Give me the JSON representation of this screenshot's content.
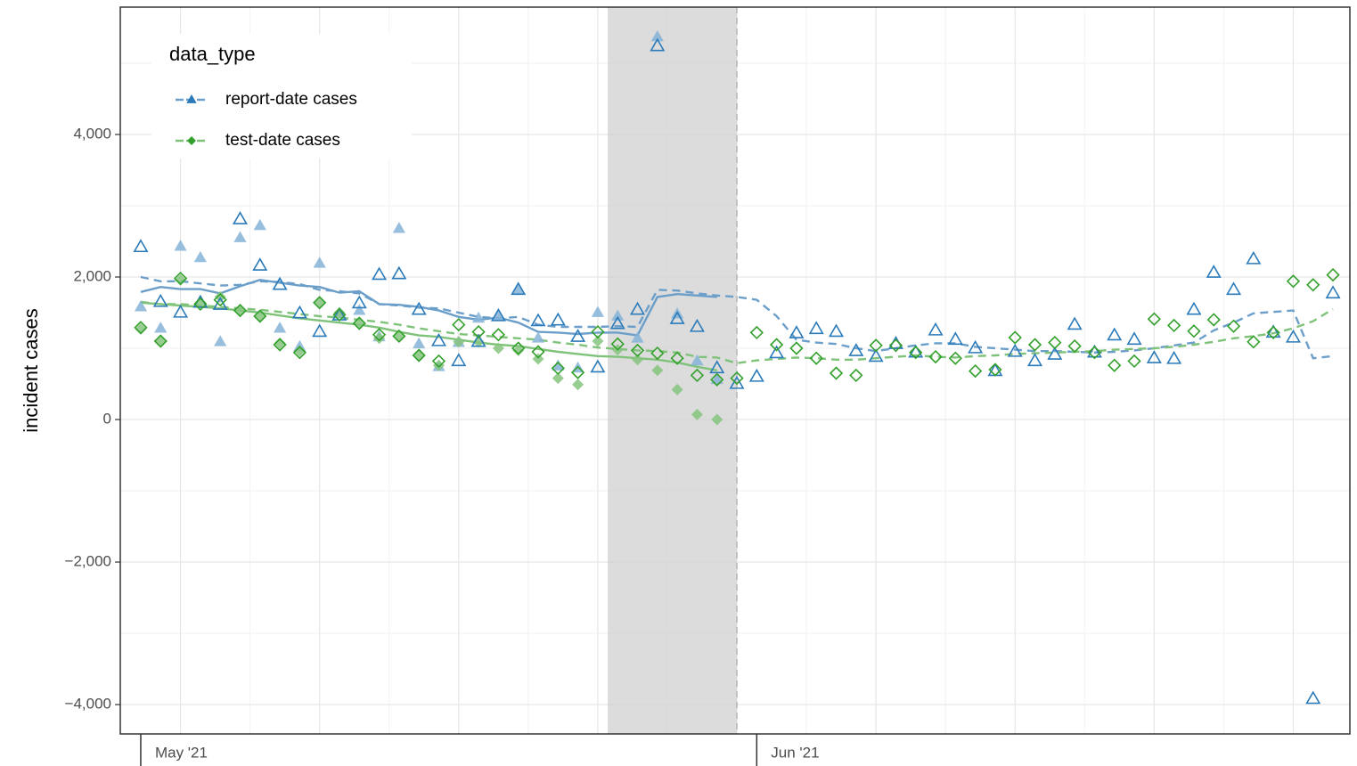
{
  "chart_data": {
    "type": "scatter",
    "y_label": "incident cases",
    "legend_title": "data_type",
    "legend_position": "top-left",
    "grid": true,
    "xlim": [
      -1.03,
      60.85
    ],
    "xticks": [
      {
        "value": 0,
        "label": "May '21"
      },
      {
        "value": 31,
        "label": "Jun '21"
      }
    ],
    "x_gridlines": [
      2,
      9,
      16,
      23,
      30,
      37,
      44,
      51,
      58
    ],
    "ylim": [
      -4412,
      5787
    ],
    "yticks": [
      {
        "value": -4000,
        "label": "−4,000"
      },
      {
        "value": -2000,
        "label": "−2,000"
      },
      0,
      {
        "value": 2000,
        "label": "2,000"
      },
      {
        "value": 4000,
        "label": "4,000"
      }
    ],
    "shaded_range": [
      23.5,
      30
    ],
    "vline": 30,
    "x": [
      0,
      1,
      2,
      3,
      4,
      5,
      6,
      7,
      8,
      9,
      10,
      11,
      12,
      13,
      14,
      15,
      16,
      17,
      18,
      19,
      20,
      21,
      22,
      23,
      24,
      25,
      26,
      27,
      28,
      29,
      30,
      31,
      32,
      33,
      34,
      35,
      36,
      37,
      38,
      39,
      40,
      41,
      42,
      43,
      44,
      45,
      46,
      47,
      48,
      49,
      50,
      51,
      52,
      53,
      54,
      55,
      56,
      57,
      58,
      59,
      60
    ],
    "series": [
      {
        "name": "report-date cases",
        "color": "#6b9fca",
        "line": "dashed",
        "values": [
          2000,
          1940,
          1940,
          1910,
          1880,
          1890,
          1940,
          1930,
          1900,
          1820,
          1800,
          1770,
          1620,
          1600,
          1570,
          1560,
          1500,
          1440,
          1420,
          1440,
          1330,
          1300,
          1300,
          1300,
          1310,
          1300,
          1820,
          1810,
          1770,
          1740,
          1720,
          1680,
          1450,
          1120,
          1080,
          1060,
          1000,
          960,
          1000,
          1040,
          1070,
          1070,
          1020,
          1000,
          980,
          960,
          960,
          950,
          940,
          950,
          970,
          1000,
          1040,
          1080,
          1250,
          1360,
          1490,
          1510,
          1530,
          860,
          890
        ]
      },
      {
        "name": "report-date cases",
        "color": "#6b9fca",
        "line": "solid",
        "values": [
          1790,
          1860,
          1830,
          1830,
          1770,
          1870,
          1960,
          1920,
          1880,
          1860,
          1780,
          1800,
          1620,
          1610,
          1580,
          1530,
          1440,
          1400,
          1430,
          1360,
          1230,
          1220,
          1200,
          1220,
          1220,
          1180,
          1720,
          1760,
          1740,
          1720,
          null,
          null,
          null,
          null,
          null,
          null,
          null,
          null,
          null,
          null,
          null,
          null,
          null,
          null,
          null,
          null,
          null,
          null,
          null,
          null,
          null,
          null,
          null,
          null,
          null,
          null,
          null,
          null,
          null,
          null,
          null
        ]
      },
      {
        "name": "test-date cases",
        "color": "#7fc27a",
        "line": "dashed",
        "values": [
          1650,
          1620,
          1620,
          1600,
          1580,
          1560,
          1540,
          1510,
          1480,
          1450,
          1430,
          1400,
          1370,
          1330,
          1280,
          1240,
          1200,
          1180,
          1160,
          1140,
          1120,
          1080,
          1050,
          1010,
          990,
          970,
          960,
          940,
          880,
          870,
          790,
          830,
          850,
          870,
          860,
          840,
          840,
          860,
          880,
          900,
          880,
          870,
          890,
          900,
          920,
          930,
          940,
          950,
          960,
          980,
          990,
          1000,
          1020,
          1050,
          1090,
          1140,
          1170,
          1210,
          1280,
          1380,
          1550
        ]
      },
      {
        "name": "test-date cases",
        "color": "#7fc27a",
        "line": "solid",
        "values": [
          1640,
          1620,
          1600,
          1580,
          1560,
          1530,
          1500,
          1460,
          1420,
          1390,
          1360,
          1330,
          1290,
          1230,
          1180,
          1160,
          1120,
          1080,
          1050,
          1030,
          990,
          950,
          920,
          890,
          880,
          860,
          840,
          800,
          740,
          690,
          null,
          null,
          null,
          null,
          null,
          null,
          null,
          null,
          null,
          null,
          null,
          null,
          null,
          null,
          null,
          null,
          null,
          null,
          null,
          null,
          null,
          null,
          null,
          null,
          null,
          null,
          null,
          null,
          null,
          null,
          null
        ]
      },
      {
        "name": "report-date cases",
        "color": "#86b3d8",
        "marker": "triangle",
        "fill": "filled",
        "values": [
          1580,
          1280,
          2430,
          2270,
          1090,
          2550,
          2720,
          1280,
          1020,
          2190,
          1480,
          1530,
          1160,
          2680,
          1060,
          740,
          1080,
          1420,
          1440,
          1830,
          1140,
          750,
          720,
          1500,
          1450,
          1140,
          5370,
          1480,
          820,
          560,
          null,
          null,
          null,
          null,
          null,
          null,
          null,
          null,
          null,
          null,
          null,
          null,
          null,
          null,
          null,
          null,
          null,
          null,
          null,
          null,
          null,
          null,
          null,
          null,
          null,
          null,
          null,
          null,
          null,
          null,
          null
        ]
      },
      {
        "name": "test-date cases",
        "color": "#86c47f",
        "marker": "diamond",
        "fill": "filled",
        "values": [
          1270,
          1110,
          1960,
          1640,
          1720,
          1540,
          1460,
          1070,
          960,
          1630,
          1500,
          1340,
          1140,
          1180,
          890,
          760,
          1090,
          1090,
          1000,
          970,
          850,
          580,
          490,
          1100,
          980,
          840,
          690,
          420,
          70,
          0,
          null,
          null,
          null,
          null,
          null,
          null,
          null,
          null,
          null,
          null,
          null,
          null,
          null,
          null,
          null,
          null,
          null,
          null,
          null,
          null,
          null,
          null,
          null,
          null,
          null,
          null,
          null,
          null,
          null,
          null,
          null
        ]
      },
      {
        "name": "report-date cases",
        "color": "#2b7bba",
        "marker": "triangle",
        "fill": "open",
        "values": [
          2420,
          1650,
          1500,
          1640,
          1610,
          2810,
          2160,
          1890,
          1490,
          1230,
          1460,
          1630,
          2030,
          2040,
          1540,
          1100,
          820,
          1090,
          1450,
          1820,
          1380,
          1390,
          1160,
          730,
          1340,
          1540,
          5240,
          1410,
          1300,
          720,
          500,
          600,
          930,
          1210,
          1270,
          1230,
          960,
          880,
          1060,
          940,
          1250,
          1120,
          1000,
          680,
          950,
          820,
          910,
          1330,
          940,
          1180,
          1120,
          860,
          850,
          1540,
          2060,
          1820,
          2250,
          1220,
          1150,
          -3920,
          1770
        ]
      },
      {
        "name": "test-date cases",
        "color": "#33a02c",
        "marker": "diamond",
        "fill": "open",
        "values": [
          1290,
          1100,
          1980,
          1620,
          1680,
          1530,
          1450,
          1050,
          940,
          1640,
          1470,
          1350,
          1190,
          1170,
          900,
          820,
          1330,
          1230,
          1190,
          1000,
          950,
          720,
          660,
          1230,
          1060,
          970,
          930,
          860,
          620,
          560,
          580,
          1220,
          1050,
          1000,
          860,
          650,
          620,
          1040,
          1040,
          940,
          880,
          860,
          680,
          700,
          1150,
          1050,
          1080,
          1030,
          940,
          760,
          820,
          1410,
          1320,
          1240,
          1400,
          1310,
          1090,
          1220,
          1940,
          1890,
          2030
        ]
      }
    ]
  }
}
